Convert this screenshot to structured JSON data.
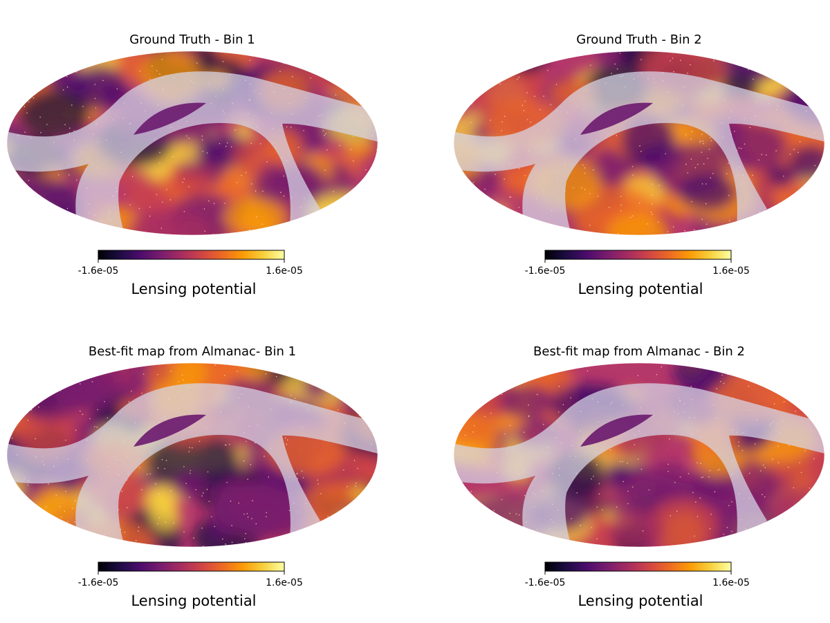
{
  "chart_data": [
    {
      "type": "heatmap",
      "projection": "mollweide",
      "title": "Ground Truth - Bin 1",
      "colormap": "inferno",
      "vmin": -1.6e-05,
      "vmax": 1.6e-05,
      "colorbar": {
        "label": "Lensing potential",
        "tick_labels": [
          "-1.6e-05",
          "1.6e-05"
        ]
      },
      "mask": "galactic plane band shown semi-transparent"
    },
    {
      "type": "heatmap",
      "projection": "mollweide",
      "title": "Ground Truth - Bin 2",
      "colormap": "inferno",
      "vmin": -1.6e-05,
      "vmax": 1.6e-05,
      "colorbar": {
        "label": "Lensing potential",
        "tick_labels": [
          "-1.6e-05",
          "1.6e-05"
        ]
      },
      "mask": "galactic plane band shown semi-transparent"
    },
    {
      "type": "heatmap",
      "projection": "mollweide",
      "title": "Best-fit map from Almanac- Bin 1",
      "colormap": "inferno",
      "vmin": -1.6e-05,
      "vmax": 1.6e-05,
      "colorbar": {
        "label": "Lensing potential",
        "tick_labels": [
          "-1.6e-05",
          "1.6e-05"
        ]
      },
      "mask": "galactic plane band shown semi-transparent"
    },
    {
      "type": "heatmap",
      "projection": "mollweide",
      "title": "Best-fit map from Almanac - Bin 2",
      "colormap": "inferno",
      "vmin": -1.6e-05,
      "vmax": 1.6e-05,
      "colorbar": {
        "label": "Lensing potential",
        "tick_labels": [
          "-1.6e-05",
          "1.6e-05"
        ]
      },
      "mask": "galactic plane band shown semi-transparent"
    }
  ],
  "colors": {
    "inferno": [
      "#000004",
      "#1b0c41",
      "#4a0c6b",
      "#781c6d",
      "#a52c60",
      "#cf4446",
      "#ed6925",
      "#fb9b06",
      "#f7d13d",
      "#fcffa4"
    ],
    "mask_overlay": "#d8d8ea",
    "ocean": "#c9d3e6"
  }
}
